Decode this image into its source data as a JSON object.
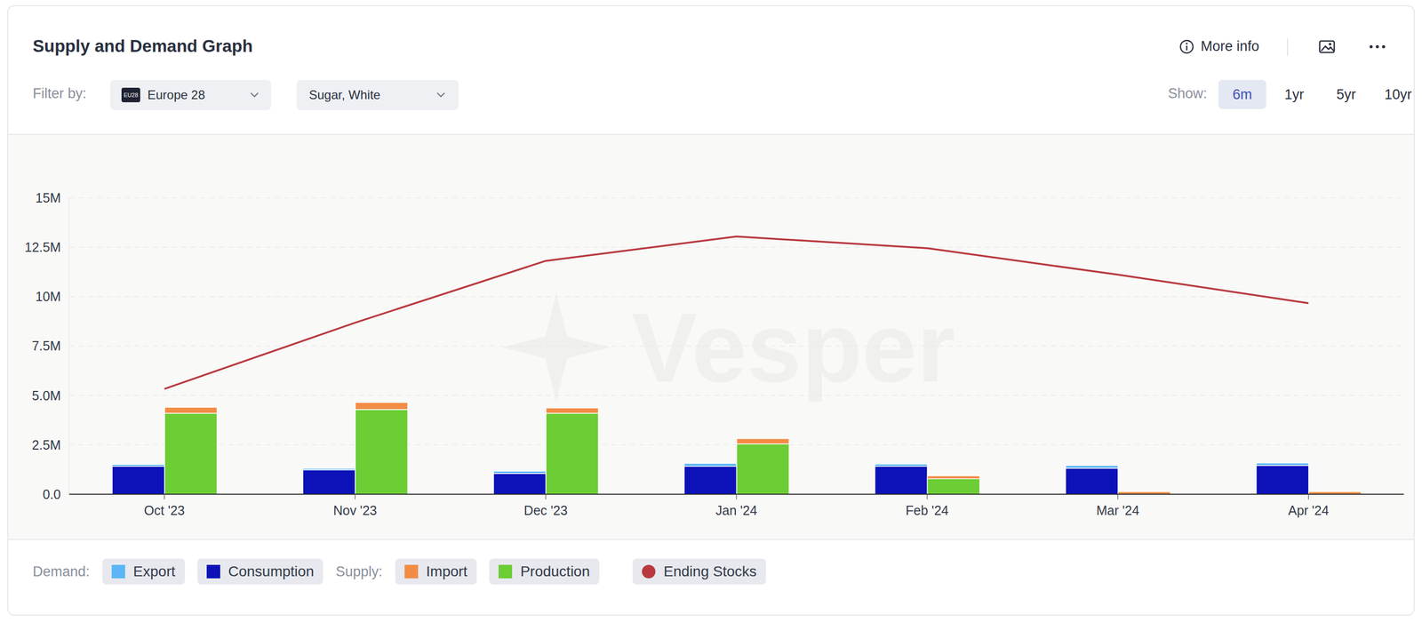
{
  "chart_data": {
    "type": "bar",
    "title": "Supply and Demand Graph",
    "stacked": true,
    "grid": true,
    "categories": [
      "Oct '23",
      "Nov '23",
      "Dec '23",
      "Jan '24",
      "Feb '24",
      "Mar '24",
      "Apr '24"
    ],
    "series": [
      {
        "name": "Consumption",
        "color": "#0c12b8",
        "values": [
          1410000,
          1230000,
          1050000,
          1410000,
          1410000,
          1320000,
          1460000
        ]
      },
      {
        "name": "Export",
        "color": "#5cb6f5",
        "values": [
          100000,
          80000,
          120000,
          150000,
          120000,
          140000,
          120000
        ]
      },
      {
        "name": "Production",
        "color": "#6ccd34",
        "values": [
          4100000,
          4290000,
          4100000,
          2550000,
          780000,
          0,
          0
        ]
      },
      {
        "name": "Import",
        "color": "#f28c45",
        "values": [
          300000,
          350000,
          270000,
          270000,
          150000,
          130000,
          130000
        ]
      },
      {
        "name": "Ending Stocks",
        "color": "#b83a3f",
        "type": "line",
        "values": [
          5330000,
          8680000,
          11810000,
          13040000,
          12450000,
          11110000,
          9670000
        ]
      }
    ],
    "ylim": [
      0,
      15000000
    ],
    "yticks": [
      {
        "value": 0,
        "label": "0.0"
      },
      {
        "value": 2500000,
        "label": "2.5M"
      },
      {
        "value": 5000000,
        "label": "5.0M"
      },
      {
        "value": 7500000,
        "label": "7.5M"
      },
      {
        "value": 10000000,
        "label": "10M"
      },
      {
        "value": 12500000,
        "label": "12.5M"
      },
      {
        "value": 15000000,
        "label": "15M"
      }
    ]
  },
  "ui": {
    "more_info": "More info",
    "filter_label": "Filter by:",
    "region_badge": "EU28",
    "region": "Europe 28",
    "commodity": "Sugar, White",
    "show_label": "Show:",
    "ranges": [
      "6m",
      "1yr",
      "5yr",
      "10yr"
    ],
    "active_range": "6m",
    "watermark": "Vesper",
    "legend_groups": [
      {
        "label": "Demand:",
        "series": [
          "Export",
          "Consumption"
        ]
      },
      {
        "label": "Supply:",
        "series": [
          "Import",
          "Production"
        ]
      },
      {
        "label": null,
        "series": [
          "Ending Stocks"
        ]
      }
    ]
  }
}
